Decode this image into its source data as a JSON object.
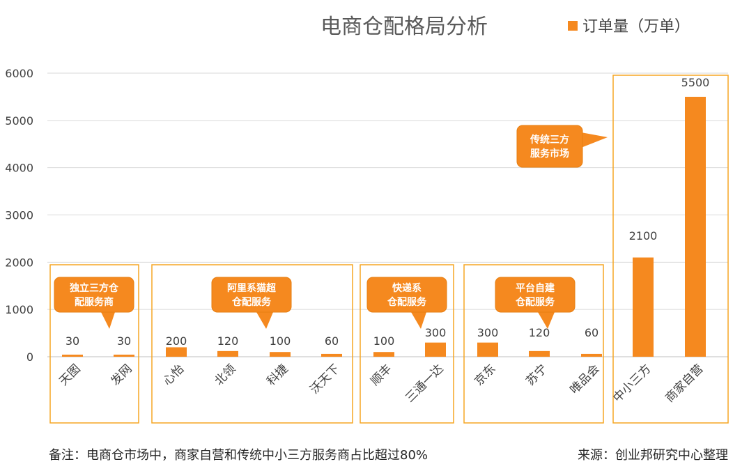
{
  "chart_data": {
    "type": "bar",
    "title": "电商仓配格局分析",
    "categories": [
      "天图",
      "发网",
      "心怡",
      "北领",
      "科捷",
      "沃天下",
      "顺丰",
      "三通一达",
      "京东",
      "苏宁",
      "唯品会",
      "中小三方",
      "商家自营"
    ],
    "series": [
      {
        "name": "订单量（万单）",
        "values": [
          30,
          30,
          200,
          120,
          100,
          60,
          100,
          300,
          300,
          120,
          60,
          2100,
          5500
        ]
      }
    ],
    "ylim": [
      0,
      6000
    ],
    "yticks": [
      0,
      1000,
      2000,
      3000,
      4000,
      5000,
      6000
    ],
    "grid": true,
    "legend_position": "top-right",
    "groups": [
      {
        "label_lines": [
          "独立三方仓",
          "配服务商"
        ],
        "categories": [
          "天图",
          "发网"
        ]
      },
      {
        "label_lines": [
          "阿里系猫超",
          "仓配服务"
        ],
        "categories": [
          "心怡",
          "北领",
          "科捷",
          "沃天下"
        ]
      },
      {
        "label_lines": [
          "快递系",
          "仓配服务"
        ],
        "categories": [
          "顺丰",
          "三通一达"
        ]
      },
      {
        "label_lines": [
          "平台自建",
          "仓配服务"
        ],
        "categories": [
          "京东",
          "苏宁",
          "唯品会"
        ]
      },
      {
        "label_lines": [
          "传统三方",
          "服务市场"
        ],
        "categories": [
          "中小三方",
          "商家自营"
        ]
      }
    ],
    "bar_color": "#F5891F",
    "callout_color": "#F5891F",
    "box_color": "#F5A623"
  },
  "footer": {
    "note": "备注：电商仓市场中，商家自营和传统中小三方服务商占比超过80%",
    "source": "来源：创业邦研究中心整理"
  }
}
